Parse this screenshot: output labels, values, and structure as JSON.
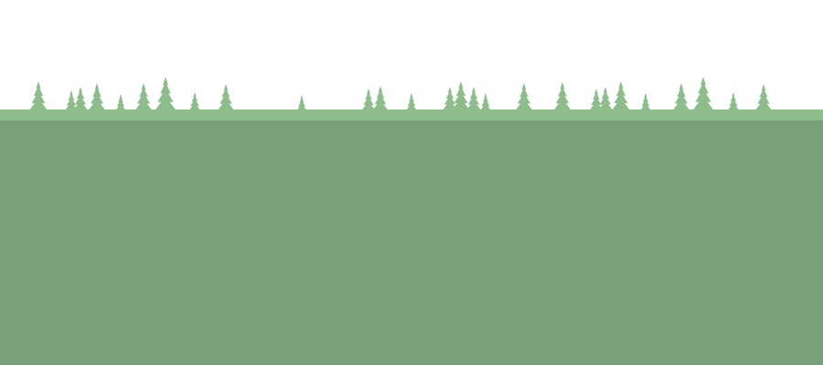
{
  "scene": {
    "description_kind": "landscape-banner",
    "colors": {
      "sky": "#ffffff",
      "tree": "#8cbd8b",
      "ground_strip": "#8cbd8b",
      "ground": "#78a07a"
    },
    "icons": {
      "tree": "pine-tree-icon"
    }
  }
}
